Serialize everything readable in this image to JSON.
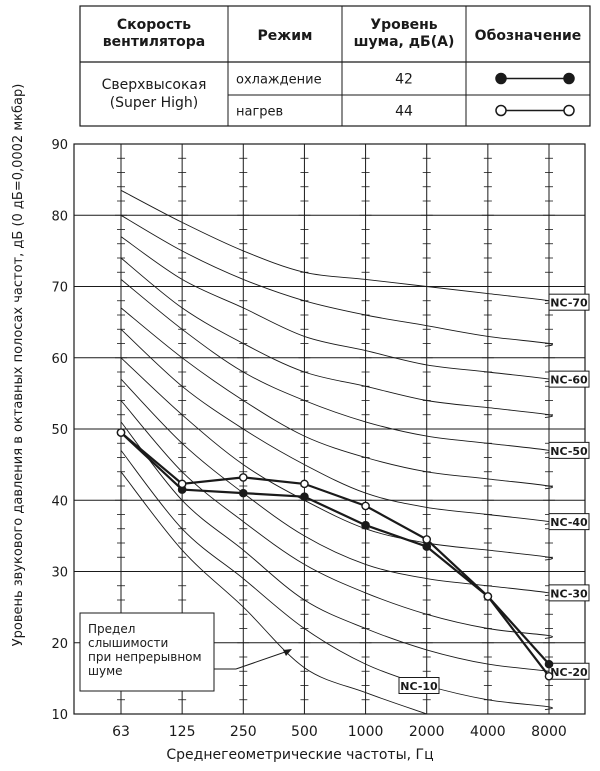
{
  "legend_table": {
    "headers": [
      "Скорость вентилятора",
      "Режим",
      "Уровень шума, дБ(А)",
      "Обозначение"
    ],
    "header_lines": [
      [
        "Скорость",
        "вентилятора"
      ],
      [
        "Режим"
      ],
      [
        "Уровень",
        "шума, дБ(А)"
      ],
      [
        "Обозначение"
      ]
    ],
    "speed_lines": [
      "Сверхвысокая",
      "(Super High)"
    ],
    "rows": [
      {
        "mode": "охлаждение",
        "level": "42",
        "marker": "filled"
      },
      {
        "mode": "нагрев",
        "level": "44",
        "marker": "open"
      }
    ]
  },
  "chart_data": {
    "type": "line",
    "title": "",
    "xlabel": "Среднегеометрические частоты, Гц",
    "ylabel": "Уровень звукового давления в октавных полосах частот, дБ (0 дБ=0,0002 мкбар)",
    "categories": [
      "63",
      "125",
      "250",
      "500",
      "1000",
      "2000",
      "4000",
      "8000"
    ],
    "ylim": [
      10,
      90
    ],
    "yticks": [
      10,
      20,
      30,
      40,
      50,
      60,
      70,
      80,
      90
    ],
    "grid": true,
    "series": [
      {
        "name": "охлаждение",
        "marker": "filled",
        "values": [
          49.5,
          41.5,
          41.0,
          40.5,
          36.5,
          33.5,
          26.5,
          17.0
        ]
      },
      {
        "name": "нагрев",
        "marker": "open",
        "values": [
          49.5,
          42.3,
          43.2,
          42.3,
          39.2,
          34.5,
          26.5,
          15.3
        ]
      }
    ],
    "nc_labels": [
      "NC-70",
      "NC-60",
      "NC-50",
      "NC-40",
      "NC-30",
      "NC-20",
      "NC-10"
    ],
    "nc_curves": [
      {
        "nc": 70,
        "values": [
          83.5,
          79.0,
          75.0,
          72.0,
          71.0,
          70.0,
          69.0,
          68.0
        ]
      },
      {
        "nc": 65,
        "values": [
          80.0,
          75.0,
          71.0,
          68.0,
          66.0,
          64.5,
          63.0,
          62.0
        ]
      },
      {
        "nc": 60,
        "values": [
          77.0,
          71.0,
          67.0,
          63.0,
          61.0,
          59.0,
          58.0,
          57.0
        ]
      },
      {
        "nc": 55,
        "values": [
          74.0,
          67.0,
          62.0,
          58.0,
          56.0,
          54.0,
          53.0,
          52.0
        ]
      },
      {
        "nc": 50,
        "values": [
          71.0,
          64.0,
          58.0,
          54.0,
          51.0,
          49.0,
          48.0,
          47.0
        ]
      },
      {
        "nc": 45,
        "values": [
          67.0,
          60.0,
          54.0,
          49.0,
          46.0,
          44.0,
          43.0,
          42.0
        ]
      },
      {
        "nc": 40,
        "values": [
          64.0,
          56.0,
          50.0,
          45.0,
          41.0,
          39.0,
          38.0,
          37.0
        ]
      },
      {
        "nc": 35,
        "values": [
          60.0,
          52.0,
          45.0,
          40.0,
          36.0,
          34.0,
          33.0,
          32.0
        ]
      },
      {
        "nc": 30,
        "values": [
          57.0,
          48.0,
          41.0,
          35.0,
          31.0,
          29.0,
          28.0,
          27.0
        ]
      },
      {
        "nc": 25,
        "values": [
          54.0,
          44.0,
          37.0,
          31.0,
          27.0,
          24.0,
          22.0,
          21.0
        ]
      },
      {
        "nc": 20,
        "values": [
          51.0,
          40.0,
          33.0,
          26.0,
          22.0,
          19.0,
          17.0,
          16.0
        ]
      },
      {
        "nc": 15,
        "values": [
          47.0,
          36.0,
          29.0,
          22.0,
          17.0,
          14.0,
          12.0,
          11.0
        ]
      },
      {
        "nc": 10,
        "values": [
          44.0,
          33.0,
          25.0,
          16.5,
          13.0,
          10.0
        ]
      }
    ],
    "annotation": [
      "Предел",
      "слышимости",
      "при непрерывном",
      "шуме"
    ]
  }
}
